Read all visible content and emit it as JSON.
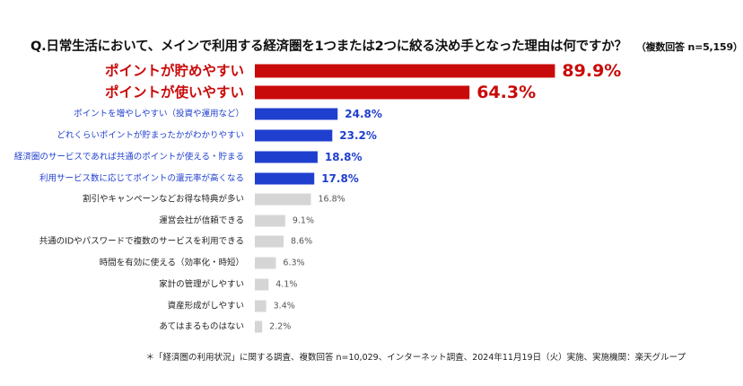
{
  "title": {
    "question": "Q.日常生活において、メインで利用する経済圏を1つまたは2つに絞る決め手となった理由は何ですか？",
    "note": "（複数回答 n=5,159）"
  },
  "footnote": "＊「経済圏の利用状況」に関する調査、複数回答 n=10,029、インターネット調査、2024年11月19日（火）実施、実施機関：楽天グループ",
  "colors": {
    "highlight": "#c90a0a",
    "accent": "#1f3fce",
    "neutral": "#d5d5d5",
    "neutral_text": "#555555"
  },
  "chart_data": {
    "type": "bar",
    "orientation": "horizontal",
    "unit": "%",
    "xlim": [
      0,
      100
    ],
    "grid": false,
    "categories": [
      "ポイントが貯めやすい",
      "ポイントが使いやすい",
      "ポイントを増やしやすい（投資や運用など）",
      "どれくらいポイントが貯まったかがわかりやすい",
      "経済圏のサービスであれば共通のポイントが使える・貯まる",
      "利用サービス数に応じてポイントの還元率が高くなる",
      "割引やキャンペーンなどお得な特典が多い",
      "運営会社が信頼できる",
      "共通のIDやパスワードで複数のサービスを利用できる",
      "時間を有効に使える（効率化・時短）",
      "家計の管理がしやすい",
      "資産形成がしやすい",
      "あてはまるものはない"
    ],
    "values": [
      89.9,
      64.3,
      24.8,
      23.2,
      18.8,
      17.8,
      16.8,
      9.1,
      8.6,
      6.3,
      4.1,
      3.4,
      2.2
    ],
    "value_labels": [
      "89.9%",
      "64.3%",
      "24.8%",
      "23.2%",
      "18.8%",
      "17.8%",
      "16.8%",
      "9.1%",
      "8.6%",
      "6.3%",
      "4.1%",
      "3.4%",
      "2.2%"
    ],
    "groups": [
      "highlight",
      "highlight",
      "accent",
      "accent",
      "accent",
      "accent",
      "neutral",
      "neutral",
      "neutral",
      "neutral",
      "neutral",
      "neutral",
      "neutral"
    ]
  }
}
